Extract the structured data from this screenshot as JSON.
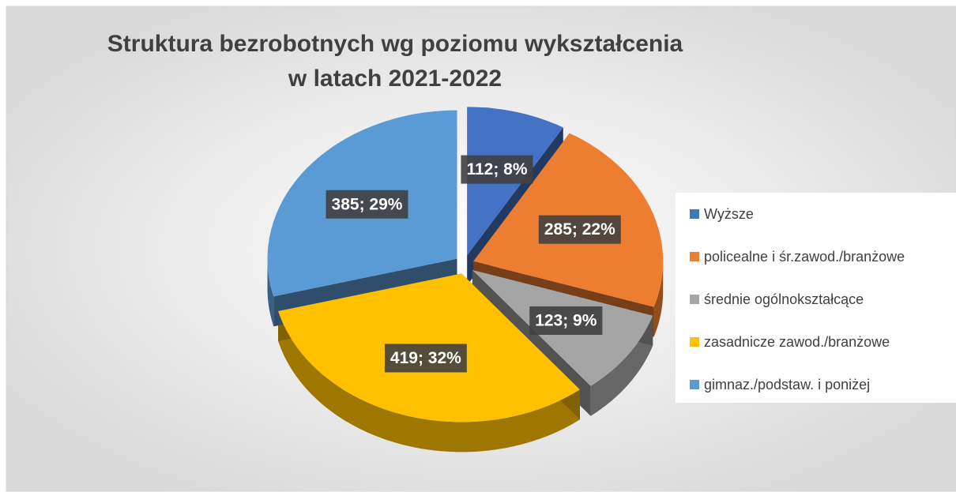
{
  "chart_data": {
    "type": "pie",
    "title": [
      "Struktura bezrobotnych wg poziomu wykształcenia",
      "w latach 2021-2022"
    ],
    "categories": [
      "Wyższe",
      "policealne i śr.zawod./branżowe",
      "średnie ogólnokształcące",
      "zasadnicze zawod./branżowe",
      "gimnaz./podstaw. i poniżej"
    ],
    "values": [
      112,
      285,
      123,
      419,
      385
    ],
    "value_labels": [
      "112; 8%",
      "285; 22%",
      "123; 9%",
      "419; 32%",
      "385; 29%"
    ],
    "colors": [
      "#4472c4",
      "#ed7d31",
      "#a5a5a5",
      "#ffc000",
      "#5b9bd5"
    ],
    "legend": "right"
  }
}
